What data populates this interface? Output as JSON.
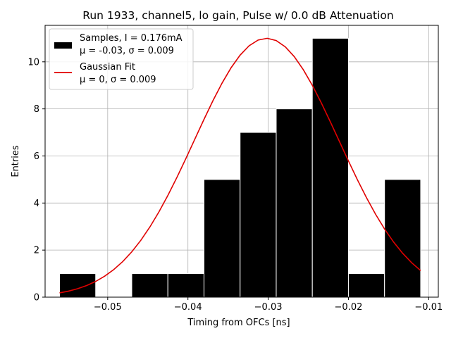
{
  "chart_data": {
    "type": "bar",
    "title": "Run 1933, channel5, lo gain, Pulse w/ 0.0 dB Attenuation",
    "xlabel": "Timing from OFCs [ns]",
    "ylabel": "Entries",
    "xlim": [
      -0.0578,
      -0.0088
    ],
    "ylim": [
      0,
      11.55
    ],
    "xticks": [
      -0.05,
      -0.04,
      -0.03,
      -0.02,
      -0.01
    ],
    "xtick_labels": [
      "−0.05",
      "−0.04",
      "−0.03",
      "−0.02",
      "−0.01"
    ],
    "yticks": [
      0,
      2,
      4,
      6,
      8,
      10
    ],
    "ytick_labels": [
      "0",
      "2",
      "4",
      "6",
      "8",
      "10"
    ],
    "grid": true,
    "legend_position": "top-left",
    "histogram": {
      "name": "Samples, I = 0.176mA",
      "stats": "μ = -0.03, σ = 0.009",
      "color": "#000000",
      "bin_edges": [
        -0.056,
        -0.0515,
        -0.047,
        -0.0425,
        -0.038,
        -0.0335,
        -0.029,
        -0.0245,
        -0.02,
        -0.0155,
        -0.011
      ],
      "counts": [
        1,
        0,
        1,
        1,
        5,
        7,
        8,
        11,
        1,
        5
      ]
    },
    "fit": {
      "name": "Gaussian Fit",
      "stats": "μ = 0, σ = 0.009",
      "color": "#e00000",
      "mean": -0.0302,
      "sigma": 0.009,
      "amplitude": 11.0,
      "x_range": [
        -0.056,
        -0.011
      ]
    }
  }
}
